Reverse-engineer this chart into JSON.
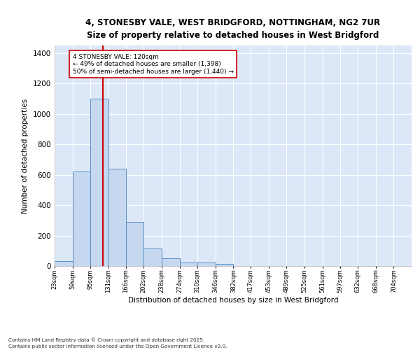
{
  "title1": "4, STONESBY VALE, WEST BRIDGFORD, NOTTINGHAM, NG2 7UR",
  "title2": "Size of property relative to detached houses in West Bridgford",
  "xlabel": "Distribution of detached houses by size in West Bridgford",
  "ylabel": "Number of detached properties",
  "bar_color": "#c5d8f0",
  "bar_edge_color": "#5b8ec4",
  "bg_color": "#dce8f8",
  "grid_color": "#ffffff",
  "vline_x": 120,
  "vline_color": "#cc0000",
  "annotation_text": "4 STONESBY VALE: 120sqm\n← 49% of detached houses are smaller (1,398)\n50% of semi-detached houses are larger (1,440) →",
  "annotation_box_color": "#ffffff",
  "annotation_box_edge": "#cc0000",
  "bins": [
    23,
    59,
    95,
    131,
    166,
    202,
    238,
    274,
    310,
    346,
    382,
    417,
    453,
    489,
    525,
    561,
    597,
    632,
    668,
    704,
    740
  ],
  "counts": [
    30,
    620,
    1100,
    640,
    290,
    115,
    50,
    25,
    22,
    15,
    0,
    0,
    0,
    0,
    0,
    0,
    0,
    0,
    0,
    0
  ],
  "ylim": [
    0,
    1450
  ],
  "yticks": [
    0,
    200,
    400,
    600,
    800,
    1000,
    1200,
    1400
  ],
  "footnote1": "Contains HM Land Registry data © Crown copyright and database right 2025.",
  "footnote2": "Contains public sector information licensed under the Open Government Licence v3.0."
}
